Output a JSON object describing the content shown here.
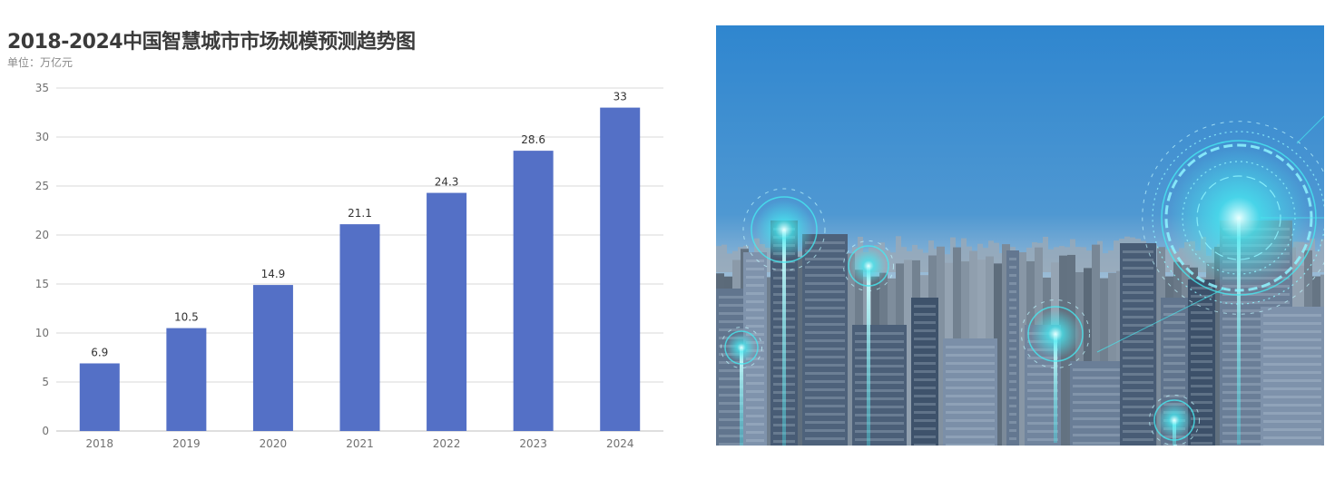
{
  "chart_data": {
    "type": "bar",
    "title": "2018-2024中国智慧城市市场规模预测趋势图",
    "subtitle": "单位：万亿元",
    "categories": [
      "2018",
      "2019",
      "2020",
      "2021",
      "2022",
      "2023",
      "2024"
    ],
    "values": [
      6.9,
      10.5,
      14.9,
      21.1,
      24.3,
      28.6,
      33
    ],
    "value_labels": [
      "6.9",
      "10.5",
      "14.9",
      "21.1",
      "24.3",
      "28.6",
      "33"
    ],
    "ylim": [
      0,
      35
    ],
    "yticks": [
      0,
      5,
      10,
      15,
      20,
      25,
      30,
      35
    ],
    "grid": true,
    "bar_color": "#5470c6"
  },
  "photo": {
    "sky_top": "#2f86cf",
    "sky_bottom": "#a7c1d6",
    "glow": "#46e8f0"
  }
}
